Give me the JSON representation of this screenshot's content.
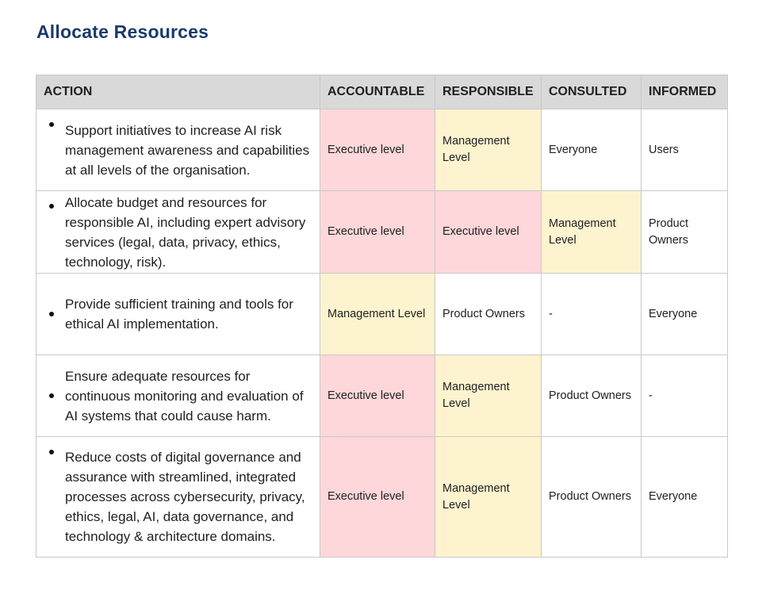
{
  "page": {
    "title": "Allocate Resources"
  },
  "colors": {
    "title": "#1b3a6b",
    "header_bg": "#d9d9d9",
    "executive": "#fdd7d9",
    "management": "#fdf3cf"
  },
  "table": {
    "headers": {
      "action": "ACTION",
      "accountable": "ACCOUNTABLE",
      "responsible": "RESPONSIBLE",
      "consulted": "CONSULTED",
      "informed": "INFORMED"
    },
    "rows": [
      {
        "action": "Support initiatives to increase AI risk management awareness and capabilities at all levels of the organisation.",
        "accountable": "Executive level",
        "responsible": "Management Level",
        "consulted": "Everyone",
        "informed": "Users"
      },
      {
        "action": "Allocate budget and resources for responsible AI, including expert advisory services (legal, data, privacy, ethics, technology, risk).",
        "accountable": "Executive level",
        "responsible": "Executive level",
        "consulted": "Management Level",
        "informed": "Product Owners"
      },
      {
        "action": "Provide sufficient training and tools for ethical AI implementation.",
        "accountable": "Management Level",
        "responsible": "Product Owners",
        "consulted": "-",
        "informed": "Everyone"
      },
      {
        "action": "Ensure adequate resources for continuous monitoring and evaluation of AI systems that could cause harm.",
        "accountable": "Executive level",
        "responsible": "Management Level",
        "consulted": "Product Owners",
        "informed": "-"
      },
      {
        "action": "Reduce costs of digital governance and assurance with streamlined, integrated processes across cybersecurity, privacy, ethics, legal, AI, data governance, and technology & architecture domains.",
        "accountable": "Executive level",
        "responsible": "Management Level",
        "consulted": "Product Owners",
        "informed": "Everyone"
      }
    ]
  }
}
